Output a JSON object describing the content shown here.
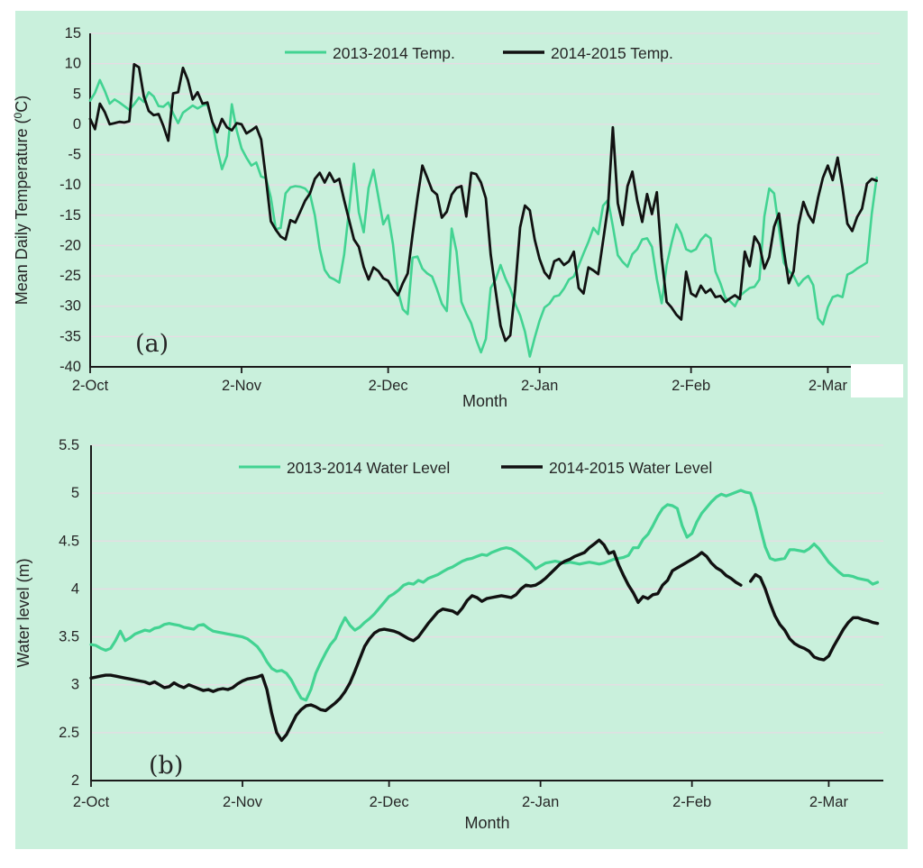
{
  "figure": {
    "panel_bg": "#c9f0dc",
    "grid_color": "#e8dbe4",
    "axis_color": "#1a1a1a",
    "text_color": "#262626",
    "artifact_white_patch": "#ffffff"
  },
  "chart_data": [
    {
      "id": "a",
      "type": "line",
      "panel_label": "(a)",
      "xlabel": "Month",
      "ylabel": "Mean Daily Temperature (0C)",
      "ylabel_parts": {
        "pre": "Mean Daily Temperature (",
        "sup": "0",
        "post": "C)"
      },
      "ylim": [
        -40,
        15
      ],
      "yticks": [
        15,
        10,
        5,
        0,
        -5,
        -10,
        -15,
        -20,
        -25,
        -30,
        -35,
        -40
      ],
      "x_unit": "days from 2-Oct",
      "xticks": [
        {
          "label": "2-Oct",
          "day": 0
        },
        {
          "label": "2-Nov",
          "day": 31
        },
        {
          "label": "2-Dec",
          "day": 61
        },
        {
          "label": "2-Jan",
          "day": 92
        },
        {
          "label": "2-Feb",
          "day": 123
        },
        {
          "label": "2-Mar",
          "day": 151
        }
      ],
      "legend_position": "top-center",
      "grid": "horizontal",
      "series": [
        {
          "name": "2013-2014 Temp.",
          "color": "#42d392",
          "width": 2.6,
          "values": [
            3.9,
            5.2,
            7.3,
            5.5,
            3.4,
            4.1,
            3.6,
            3.0,
            2.4,
            3.3,
            4.4,
            3.7,
            5.3,
            4.6,
            3.0,
            2.9,
            3.6,
            1.8,
            0.2,
            1.9,
            2.5,
            3.1,
            2.6,
            3.1,
            3.3,
            0.5,
            -4.0,
            -7.4,
            -5.2,
            3.3,
            -1.0,
            -4.0,
            -5.5,
            -6.8,
            -6.3,
            -8.6,
            -8.9,
            -12.1,
            -17.3,
            -17.1,
            -11.4,
            -10.4,
            -10.2,
            -10.3,
            -10.6,
            -11.5,
            -15.0,
            -20.5,
            -24.0,
            -25.2,
            -25.6,
            -26.1,
            -21.5,
            -14.0,
            -6.5,
            -14.5,
            -17.8,
            -10.5,
            -7.5,
            -12.0,
            -16.5,
            -15.0,
            -19.8,
            -27.5,
            -30.5,
            -31.3,
            -22.0,
            -21.8,
            -23.8,
            -24.6,
            -25.1,
            -27.2,
            -29.6,
            -30.8,
            -17.2,
            -21.0,
            -29.3,
            -31.2,
            -32.8,
            -35.5,
            -37.6,
            -35.4,
            -27.0,
            -25.6,
            -23.2,
            -25.4,
            -27.1,
            -29.6,
            -31.5,
            -34.2,
            -38.3,
            -35.2,
            -32.4,
            -30.2,
            -29.6,
            -28.4,
            -28.2,
            -27.1,
            -25.6,
            -25.1,
            -23.3,
            -21.3,
            -19.4,
            -17.1,
            -18.1,
            -13.4,
            -12.5,
            -16.8,
            -21.6,
            -22.7,
            -23.5,
            -21.4,
            -20.6,
            -19.0,
            -18.8,
            -20.2,
            -25.5,
            -29.5,
            -23.2,
            -19.6,
            -16.5,
            -18.0,
            -20.6,
            -21.0,
            -20.6,
            -19.1,
            -18.2,
            -18.8,
            -24.3,
            -26.2,
            -28.6,
            -29.2,
            -30.0,
            -28.3,
            -27.6,
            -27.0,
            -26.8,
            -25.6,
            -15.2,
            -10.6,
            -11.4,
            -17.2,
            -22.8,
            -24.2,
            -25.0,
            -26.6,
            -25.6,
            -25.0,
            -26.5,
            -32.0,
            -33.0,
            -30.2,
            -28.5,
            -28.2,
            -28.5,
            -24.8,
            -24.4,
            -23.8,
            -23.3,
            -22.8,
            -14.7,
            -8.8
          ]
        },
        {
          "name": "2014-2015 Temp.",
          "color": "#111111",
          "width": 2.8,
          "values": [
            0.9,
            -0.8,
            3.4,
            2.0,
            0.0,
            0.2,
            0.4,
            0.3,
            0.5,
            9.9,
            9.4,
            4.6,
            2.2,
            1.5,
            1.7,
            -0.3,
            -2.7,
            5.1,
            5.3,
            9.3,
            7.3,
            4.1,
            5.3,
            3.4,
            3.6,
            0.4,
            -1.3,
            0.9,
            -0.5,
            -1.0,
            0.2,
            0.0,
            -1.5,
            -1.0,
            -0.4,
            -2.5,
            -9.0,
            -16.0,
            -17.4,
            -18.5,
            -19.0,
            -15.8,
            -16.2,
            -14.4,
            -12.6,
            -11.4,
            -9.0,
            -8.0,
            -9.6,
            -8.0,
            -9.5,
            -9.0,
            -12.5,
            -15.8,
            -19.0,
            -20.2,
            -23.5,
            -25.6,
            -23.6,
            -24.2,
            -25.4,
            -25.8,
            -27.2,
            -28.2,
            -26.2,
            -24.6,
            -18.2,
            -12.2,
            -6.8,
            -8.8,
            -10.9,
            -11.6,
            -15.4,
            -14.4,
            -11.6,
            -10.5,
            -10.2,
            -15.2,
            -8.0,
            -8.2,
            -9.6,
            -12.2,
            -21.5,
            -27.5,
            -33.2,
            -35.7,
            -34.8,
            -27.2,
            -17.0,
            -13.4,
            -14.2,
            -19.0,
            -22.2,
            -24.4,
            -25.4,
            -22.6,
            -22.2,
            -23.2,
            -22.6,
            -21.0,
            -27.0,
            -27.9,
            -23.6,
            -24.1,
            -24.7,
            -19.2,
            -13.6,
            -0.5,
            -13.0,
            -16.6,
            -10.2,
            -7.8,
            -12.6,
            -16.1,
            -11.5,
            -14.8,
            -11.2,
            -22.0,
            -29.3,
            -30.2,
            -31.4,
            -32.2,
            -24.3,
            -27.9,
            -28.4,
            -26.6,
            -27.8,
            -27.2,
            -28.5,
            -28.3,
            -29.3,
            -28.7,
            -28.2,
            -28.8,
            -21.0,
            -23.4,
            -18.5,
            -19.8,
            -23.8,
            -21.9,
            -16.9,
            -14.7,
            -20.8,
            -26.2,
            -24.2,
            -16.6,
            -12.8,
            -14.9,
            -16.2,
            -12.1,
            -8.8,
            -6.8,
            -9.2,
            -5.5,
            -10.5,
            -16.4,
            -17.6,
            -15.3,
            -13.9,
            -9.8,
            -9.0,
            -9.3
          ]
        }
      ]
    },
    {
      "id": "b",
      "type": "line",
      "panel_label": "(b)",
      "xlabel": "Month",
      "ylabel": "Water level (m)",
      "ylabel_parts": {
        "pre": "Water level (m)",
        "sup": "",
        "post": ""
      },
      "ylim": [
        2,
        5.5
      ],
      "yticks": [
        5.5,
        5,
        4.5,
        4,
        3.5,
        3,
        2.5,
        2
      ],
      "x_unit": "days from 2-Oct",
      "xticks": [
        {
          "label": "2-Oct",
          "day": 0
        },
        {
          "label": "2-Nov",
          "day": 31
        },
        {
          "label": "2-Dec",
          "day": 61
        },
        {
          "label": "2-Jan",
          "day": 92
        },
        {
          "label": "2-Feb",
          "day": 123
        },
        {
          "label": "2-Mar",
          "day": 151
        }
      ],
      "legend_position": "top-center",
      "grid": "horizontal",
      "series": [
        {
          "name": "2013-2014 Water Level",
          "color": "#42d392",
          "width": 3.2,
          "values": [
            3.42,
            3.41,
            3.38,
            3.36,
            3.38,
            3.46,
            3.56,
            3.46,
            3.49,
            3.53,
            3.55,
            3.57,
            3.56,
            3.59,
            3.6,
            3.63,
            3.64,
            3.63,
            3.62,
            3.6,
            3.59,
            3.58,
            3.62,
            3.63,
            3.59,
            3.56,
            3.55,
            3.54,
            3.53,
            3.52,
            3.51,
            3.5,
            3.48,
            3.44,
            3.4,
            3.33,
            3.24,
            3.17,
            3.14,
            3.15,
            3.12,
            3.05,
            2.95,
            2.86,
            2.84,
            2.95,
            3.12,
            3.23,
            3.33,
            3.42,
            3.48,
            3.6,
            3.7,
            3.62,
            3.57,
            3.6,
            3.65,
            3.69,
            3.74,
            3.8,
            3.86,
            3.92,
            3.95,
            3.99,
            4.04,
            4.06,
            4.05,
            4.09,
            4.07,
            4.11,
            4.13,
            4.15,
            4.18,
            4.21,
            4.23,
            4.26,
            4.29,
            4.31,
            4.32,
            4.34,
            4.36,
            4.35,
            4.38,
            4.4,
            4.42,
            4.43,
            4.42,
            4.39,
            4.35,
            4.31,
            4.27,
            4.21,
            4.24,
            4.27,
            4.28,
            4.29,
            4.28,
            4.27,
            4.28,
            4.27,
            4.26,
            4.27,
            4.28,
            4.27,
            4.26,
            4.27,
            4.29,
            4.31,
            4.32,
            4.33,
            4.35,
            4.43,
            4.43,
            4.52,
            4.57,
            4.66,
            4.76,
            4.84,
            4.88,
            4.87,
            4.84,
            4.66,
            4.54,
            4.58,
            4.7,
            4.79,
            4.85,
            4.91,
            4.96,
            4.99,
            4.97,
            4.99,
            5.01,
            5.03,
            5.01,
            5.0,
            4.85,
            4.64,
            4.44,
            4.32,
            4.3,
            4.31,
            4.32,
            4.41,
            4.41,
            4.4,
            4.39,
            4.42,
            4.47,
            4.42,
            4.35,
            4.28,
            4.23,
            4.18,
            4.14,
            4.14,
            4.13,
            4.11,
            4.1,
            4.09,
            4.05,
            4.07
          ]
        },
        {
          "name": "2014-2015 Water Level",
          "color": "#111111",
          "width": 3.4,
          "values": [
            3.07,
            3.08,
            3.09,
            3.1,
            3.1,
            3.09,
            3.08,
            3.07,
            3.06,
            3.05,
            3.04,
            3.03,
            3.01,
            3.03,
            3.0,
            2.97,
            2.98,
            3.02,
            2.99,
            2.97,
            3.0,
            2.98,
            2.96,
            2.94,
            2.95,
            2.93,
            2.95,
            2.96,
            2.95,
            2.97,
            3.01,
            3.04,
            3.06,
            3.07,
            3.08,
            3.1,
            2.95,
            2.7,
            2.5,
            2.42,
            2.48,
            2.58,
            2.68,
            2.74,
            2.78,
            2.79,
            2.77,
            2.74,
            2.73,
            2.77,
            2.81,
            2.86,
            2.93,
            3.02,
            3.14,
            3.27,
            3.4,
            3.48,
            3.54,
            3.57,
            3.58,
            3.57,
            3.56,
            3.54,
            3.51,
            3.48,
            3.46,
            3.5,
            3.57,
            3.64,
            3.7,
            3.76,
            3.79,
            3.78,
            3.77,
            3.74,
            3.8,
            3.88,
            3.93,
            3.91,
            3.87,
            3.9,
            3.91,
            3.92,
            3.93,
            3.92,
            3.91,
            3.94,
            4.0,
            4.04,
            4.03,
            4.04,
            4.07,
            4.11,
            4.16,
            4.21,
            4.26,
            4.29,
            4.31,
            4.34,
            4.36,
            4.38,
            4.43,
            4.47,
            4.51,
            4.46,
            4.37,
            4.39,
            4.25,
            4.14,
            4.04,
            3.96,
            3.86,
            3.92,
            3.9,
            3.94,
            3.95,
            4.04,
            4.09,
            4.19,
            4.22,
            4.25,
            4.28,
            4.31,
            4.34,
            4.38,
            4.34,
            4.27,
            4.22,
            4.19,
            4.14,
            4.11,
            4.07,
            4.04,
            null,
            4.08,
            4.15,
            4.12,
            4.0,
            3.85,
            3.72,
            3.63,
            3.57,
            3.48,
            3.43,
            3.4,
            3.38,
            3.35,
            3.29,
            3.27,
            3.26,
            3.3,
            3.4,
            3.49,
            3.58,
            3.65,
            3.7,
            3.7,
            3.68,
            3.67,
            3.65,
            3.64
          ]
        }
      ]
    }
  ]
}
